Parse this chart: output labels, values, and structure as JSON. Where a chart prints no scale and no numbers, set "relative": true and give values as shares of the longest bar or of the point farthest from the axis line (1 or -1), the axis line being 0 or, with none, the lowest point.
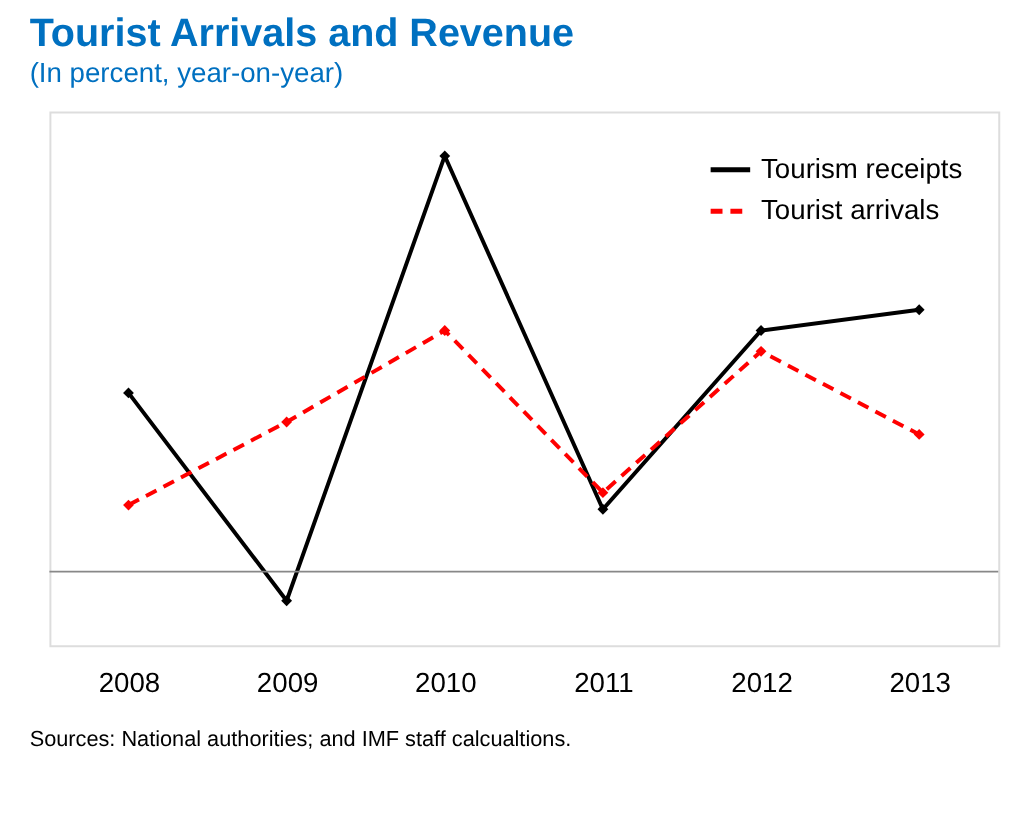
{
  "chart_data": {
    "type": "line",
    "title": "Tourist Arrivals and Revenue",
    "subtitle": "(In percent, year-on-year)",
    "categories": [
      "2008",
      "2009",
      "2010",
      "2011",
      "2012",
      "2013"
    ],
    "relative": true,
    "series": [
      {
        "name": "Tourism receipts",
        "color": "#000000",
        "line_style": "solid",
        "values": [
          0.43,
          -0.07,
          1,
          0.15,
          0.58,
          0.63
        ]
      },
      {
        "name": "Tourist arrivals",
        "color": "#ff0000",
        "line_style": "dashed",
        "values": [
          0.16,
          0.36,
          0.58,
          0.19,
          0.53,
          0.33
        ]
      }
    ],
    "marker": "diamond",
    "legend": "top right",
    "grid": false,
    "annotations": [
      "Sources: National authorities; and IMF staff calcualtions."
    ]
  }
}
